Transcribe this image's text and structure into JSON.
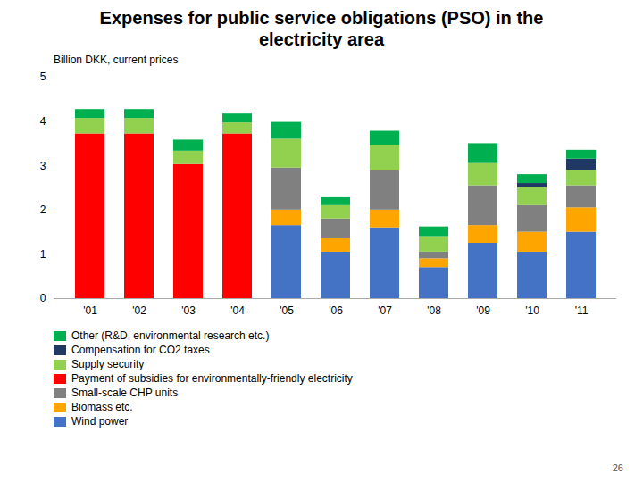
{
  "chart_data": {
    "type": "bar",
    "stacked": true,
    "title": "Expenses for public service obligations (PSO) in the\nelectricity area",
    "subtitle": "Billion DKK, current prices",
    "annotations": [
      "26"
    ],
    "categories": [
      "'01",
      "'02",
      "'03",
      "'04",
      "'05",
      "'06",
      "'07",
      "'08",
      "'09",
      "'10",
      "'11"
    ],
    "series": [
      {
        "name": "Wind power",
        "color": "#4472C4",
        "values": [
          0.0,
          0.0,
          0.0,
          0.0,
          1.65,
          1.05,
          1.6,
          0.7,
          1.25,
          1.05,
          1.5
        ]
      },
      {
        "name": "Biomass etc.",
        "color": "#FFA500",
        "values": [
          0.0,
          0.0,
          0.0,
          0.0,
          0.35,
          0.3,
          0.4,
          0.2,
          0.4,
          0.45,
          0.55
        ]
      },
      {
        "name": "Small-scale CHP units",
        "color": "#808080",
        "values": [
          0.0,
          0.0,
          0.0,
          0.0,
          0.95,
          0.45,
          0.9,
          0.15,
          0.9,
          0.6,
          0.5
        ]
      },
      {
        "name": "Payment of subsidies for environmentally-friendly electricity",
        "color": "#FF0000",
        "values": [
          3.72,
          3.72,
          3.03,
          3.72,
          0.0,
          0.0,
          0.0,
          0.0,
          0.0,
          0.0,
          0.0
        ]
      },
      {
        "name": "Supply security",
        "color": "#92D050",
        "values": [
          0.35,
          0.35,
          0.3,
          0.25,
          0.65,
          0.3,
          0.55,
          0.35,
          0.5,
          0.4,
          0.35
        ]
      },
      {
        "name": "Compensation for CO2 taxes",
        "color": "#1F3864",
        "values": [
          0.0,
          0.0,
          0.0,
          0.0,
          0.0,
          0.0,
          0.0,
          0.0,
          0.0,
          0.1,
          0.25
        ]
      },
      {
        "name": "Other (R&D, environmental research etc.)",
        "color": "#00B050",
        "values": [
          0.2,
          0.2,
          0.25,
          0.2,
          0.38,
          0.18,
          0.33,
          0.22,
          0.45,
          0.2,
          0.2
        ]
      }
    ],
    "ylim": [
      0,
      5
    ],
    "yticks": [
      0,
      1,
      2,
      3,
      4,
      5
    ],
    "grid": false,
    "legend": "lower left"
  }
}
